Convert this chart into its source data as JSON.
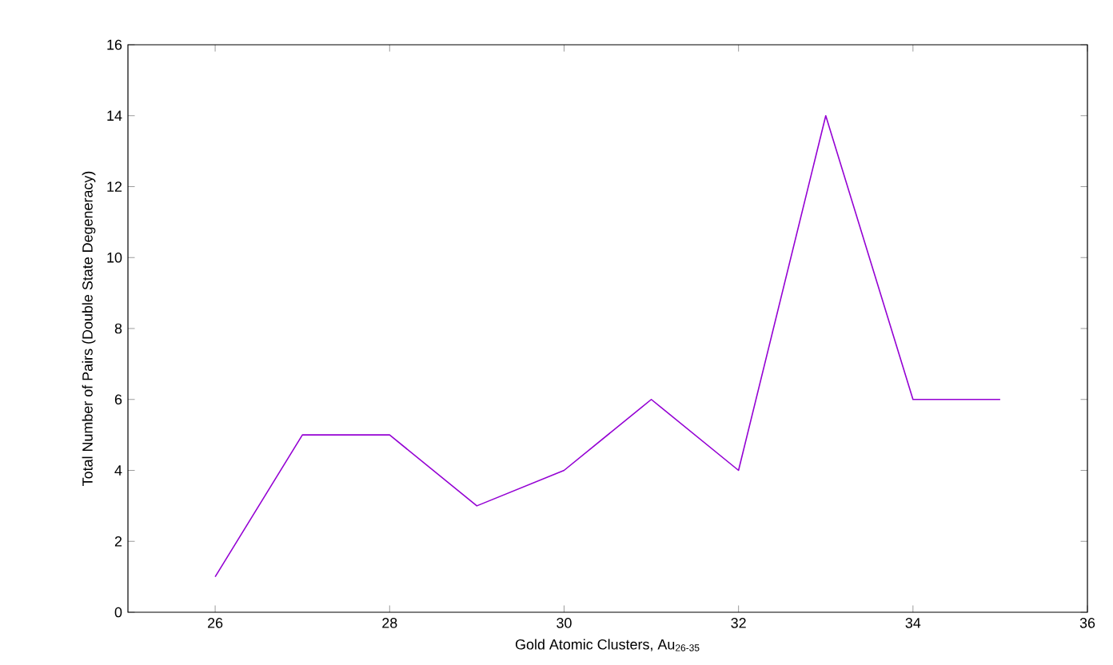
{
  "chart_data": {
    "type": "line",
    "xlabel": "Gold Atomic Clusters, Au$_{26-35}$",
    "ylabel": "Total Number of Pairs (Double State Degeneracy)",
    "x": [
      26,
      27,
      28,
      29,
      30,
      31,
      32,
      33,
      34,
      35
    ],
    "series": [
      {
        "color": "#9400d3",
        "values": [
          1,
          5,
          5,
          3,
          4,
          6,
          4,
          14,
          6,
          6
        ]
      }
    ],
    "xlim": [
      25,
      36
    ],
    "xticks": [
      26,
      28,
      30,
      32,
      34,
      36
    ],
    "ylim": [
      0,
      16
    ],
    "yticks": [
      0,
      2,
      4,
      6,
      8,
      10,
      12,
      14,
      16
    ],
    "grid": false,
    "marker": "none",
    "line_style": "solid"
  }
}
